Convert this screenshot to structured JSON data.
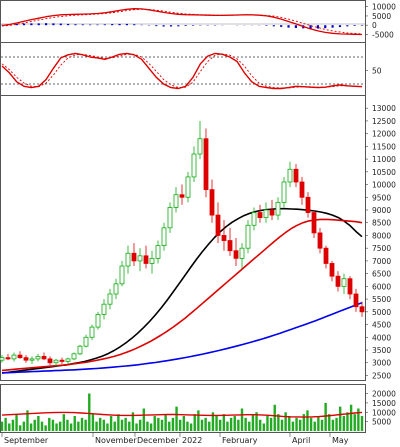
{
  "chart_data": [
    {
      "panel": "macd",
      "type": "line",
      "description_free": true,
      "ylim": [
        -8000,
        12000
      ],
      "y_ticks": [
        10000,
        5000,
        0,
        -5000
      ],
      "y_tick_labels": [
        "10000",
        "5000",
        "0",
        "-5000"
      ],
      "series": [
        {
          "role": "macd",
          "color": "#dd0000",
          "values": [
            -200,
            400,
            1200,
            2100,
            3000,
            3800,
            4600,
            5200,
            5600,
            5800,
            5900,
            6000,
            6100,
            6300,
            6700,
            7300,
            8000,
            8600,
            8900,
            8800,
            8300,
            7600,
            6900,
            6300,
            5900,
            5700,
            5600,
            5500,
            5400,
            5300,
            5300,
            5400,
            5500,
            5600,
            5600,
            5400,
            5000,
            4300,
            3300,
            2000,
            700,
            -700,
            -2000,
            -3100,
            -3900,
            -4400,
            -4700,
            -4800,
            -4900,
            -5000
          ]
        },
        {
          "role": "signal",
          "color": "#dd0000",
          "dashed": true,
          "values": [
            -400,
            -100,
            500,
            1200,
            2000,
            2800,
            3500,
            4200,
            4700,
            5100,
            5400,
            5600,
            5800,
            6000,
            6300,
            6700,
            7300,
            7900,
            8400,
            8600,
            8500,
            8100,
            7600,
            7000,
            6500,
            6100,
            5900,
            5700,
            5600,
            5500,
            5400,
            5400,
            5400,
            5500,
            5500,
            5500,
            5300,
            4900,
            4200,
            3300,
            2200,
            1000,
            -200,
            -1300,
            -2300,
            -3100,
            -3700,
            -4200,
            -4500,
            -4700
          ]
        }
      ],
      "histogram": {
        "color": "#0000cc",
        "values": [
          200,
          500,
          700,
          900,
          1000,
          1000,
          1100,
          1000,
          900,
          700,
          500,
          400,
          300,
          300,
          400,
          600,
          700,
          700,
          500,
          200,
          -200,
          -500,
          -700,
          -700,
          -600,
          -400,
          -300,
          -200,
          -200,
          -200,
          -100,
          0,
          100,
          100,
          100,
          -100,
          -300,
          -600,
          -900,
          -1300,
          -1500,
          -1700,
          -1800,
          -1800,
          -1600,
          -1300,
          -1000,
          -600,
          -400,
          -300
        ]
      }
    },
    {
      "panel": "stochastic",
      "type": "line",
      "ylim": [
        0,
        100
      ],
      "y_ticks": [
        50
      ],
      "y_tick_labels": [
        "50"
      ],
      "reference_lines": [
        80,
        20
      ],
      "series": [
        {
          "role": "k",
          "color": "#dd0000",
          "values": [
            60,
            45,
            25,
            15,
            12,
            15,
            30,
            55,
            78,
            85,
            88,
            85,
            80,
            78,
            75,
            80,
            86,
            88,
            85,
            75,
            55,
            35,
            20,
            12,
            10,
            15,
            35,
            65,
            82,
            88,
            86,
            80,
            70,
            45,
            25,
            15,
            12,
            10,
            10,
            12,
            15,
            14,
            13,
            12,
            13,
            16,
            18,
            16,
            15,
            14
          ]
        },
        {
          "role": "d",
          "color": "#dd0000",
          "dashed": true,
          "values": [
            65,
            52,
            35,
            22,
            15,
            14,
            22,
            40,
            62,
            78,
            85,
            86,
            83,
            80,
            77,
            78,
            82,
            86,
            86,
            80,
            66,
            48,
            30,
            18,
            12,
            13,
            24,
            48,
            70,
            84,
            87,
            84,
            76,
            60,
            38,
            22,
            15,
            12,
            11,
            11,
            13,
            14,
            14,
            13,
            13,
            14,
            16,
            16,
            15,
            15
          ]
        }
      ]
    },
    {
      "panel": "price",
      "type": "candlestick",
      "ylim": [
        2400,
        13400
      ],
      "y_ticks": [
        2500,
        3000,
        3500,
        4000,
        4500,
        5000,
        5500,
        6000,
        6500,
        7000,
        7500,
        8000,
        8500,
        9000,
        9500,
        10000,
        10500,
        11000,
        11500,
        12000,
        12500,
        13000
      ],
      "y_tick_labels": [
        "2500",
        "3000",
        "3500",
        "4000",
        "4500",
        "5000",
        "5500",
        "6000",
        "6500",
        "7000",
        "7500",
        "8000",
        "8500",
        "9000",
        "9500",
        "10000",
        "10500",
        "11000",
        "11500",
        "12000",
        "12500",
        "13000"
      ],
      "x_labels": [
        "September",
        "November",
        "December",
        "2022",
        "February",
        "April",
        "May"
      ],
      "candles": [
        {
          "o": 3100,
          "h": 3300,
          "l": 3000,
          "c": 3200
        },
        {
          "o": 3200,
          "h": 3350,
          "l": 3100,
          "c": 3150
        },
        {
          "o": 3150,
          "h": 3400,
          "l": 3050,
          "c": 3300
        },
        {
          "o": 3300,
          "h": 3450,
          "l": 3150,
          "c": 3200
        },
        {
          "o": 3200,
          "h": 3300,
          "l": 3000,
          "c": 3100
        },
        {
          "o": 3100,
          "h": 3250,
          "l": 2950,
          "c": 3150
        },
        {
          "o": 3150,
          "h": 3350,
          "l": 3050,
          "c": 3250
        },
        {
          "o": 3250,
          "h": 3400,
          "l": 3100,
          "c": 3150
        },
        {
          "o": 3150,
          "h": 3250,
          "l": 2900,
          "c": 3000
        },
        {
          "o": 3000,
          "h": 3150,
          "l": 2850,
          "c": 3100
        },
        {
          "o": 3100,
          "h": 3200,
          "l": 2950,
          "c": 3050
        },
        {
          "o": 3050,
          "h": 3200,
          "l": 2950,
          "c": 3150
        },
        {
          "o": 3150,
          "h": 3400,
          "l": 3100,
          "c": 3350
        },
        {
          "o": 3350,
          "h": 3700,
          "l": 3300,
          "c": 3650
        },
        {
          "o": 3650,
          "h": 4100,
          "l": 3600,
          "c": 4000
        },
        {
          "o": 4000,
          "h": 4500,
          "l": 3900,
          "c": 4400
        },
        {
          "o": 4400,
          "h": 5000,
          "l": 4300,
          "c": 4900
        },
        {
          "o": 4900,
          "h": 5500,
          "l": 4700,
          "c": 5300
        },
        {
          "o": 5300,
          "h": 5900,
          "l": 5100,
          "c": 5700
        },
        {
          "o": 5700,
          "h": 6300,
          "l": 5500,
          "c": 6100
        },
        {
          "o": 6100,
          "h": 7000,
          "l": 6000,
          "c": 6800
        },
        {
          "o": 6800,
          "h": 7600,
          "l": 6500,
          "c": 7300
        },
        {
          "o": 7300,
          "h": 7700,
          "l": 6800,
          "c": 7000
        },
        {
          "o": 7000,
          "h": 7500,
          "l": 6600,
          "c": 7200
        },
        {
          "o": 7200,
          "h": 7600,
          "l": 6700,
          "c": 6900
        },
        {
          "o": 6900,
          "h": 7400,
          "l": 6500,
          "c": 7100
        },
        {
          "o": 7100,
          "h": 7800,
          "l": 6900,
          "c": 7600
        },
        {
          "o": 7600,
          "h": 8500,
          "l": 7400,
          "c": 8300
        },
        {
          "o": 8300,
          "h": 9300,
          "l": 8100,
          "c": 9100
        },
        {
          "o": 9100,
          "h": 9900,
          "l": 8900,
          "c": 9600
        },
        {
          "o": 9600,
          "h": 10000,
          "l": 9200,
          "c": 9500
        },
        {
          "o": 9500,
          "h": 10500,
          "l": 9300,
          "c": 10300
        },
        {
          "o": 10300,
          "h": 11500,
          "l": 10100,
          "c": 11200
        },
        {
          "o": 11200,
          "h": 12500,
          "l": 11000,
          "c": 11800
        },
        {
          "o": 11800,
          "h": 12200,
          "l": 9500,
          "c": 9800
        },
        {
          "o": 9800,
          "h": 10200,
          "l": 8500,
          "c": 8800
        },
        {
          "o": 8800,
          "h": 9300,
          "l": 7700,
          "c": 8000
        },
        {
          "o": 8000,
          "h": 8600,
          "l": 7400,
          "c": 7800
        },
        {
          "o": 7800,
          "h": 8300,
          "l": 7200,
          "c": 7400
        },
        {
          "o": 7400,
          "h": 7900,
          "l": 6800,
          "c": 7100
        },
        {
          "o": 7100,
          "h": 7700,
          "l": 6700,
          "c": 7500
        },
        {
          "o": 7500,
          "h": 8600,
          "l": 7300,
          "c": 8400
        },
        {
          "o": 8400,
          "h": 9100,
          "l": 8200,
          "c": 8900
        },
        {
          "o": 8900,
          "h": 9200,
          "l": 8500,
          "c": 8700
        },
        {
          "o": 8700,
          "h": 9300,
          "l": 8500,
          "c": 9000
        },
        {
          "o": 9000,
          "h": 9400,
          "l": 8600,
          "c": 8800
        },
        {
          "o": 8800,
          "h": 9500,
          "l": 8600,
          "c": 9300
        },
        {
          "o": 9300,
          "h": 10300,
          "l": 9100,
          "c": 10100
        },
        {
          "o": 10100,
          "h": 10900,
          "l": 9900,
          "c": 10600
        },
        {
          "o": 10600,
          "h": 10800,
          "l": 9900,
          "c": 10100
        },
        {
          "o": 10100,
          "h": 10300,
          "l": 9200,
          "c": 9500
        },
        {
          "o": 9500,
          "h": 9700,
          "l": 8700,
          "c": 8900
        },
        {
          "o": 8900,
          "h": 9000,
          "l": 7900,
          "c": 8100
        },
        {
          "o": 8100,
          "h": 8300,
          "l": 7300,
          "c": 7500
        },
        {
          "o": 7500,
          "h": 7600,
          "l": 6700,
          "c": 6900
        },
        {
          "o": 6900,
          "h": 7000,
          "l": 6200,
          "c": 6400
        },
        {
          "o": 6400,
          "h": 6600,
          "l": 5800,
          "c": 6000
        },
        {
          "o": 6000,
          "h": 6500,
          "l": 5700,
          "c": 6300
        },
        {
          "o": 6300,
          "h": 6400,
          "l": 5500,
          "c": 5700
        },
        {
          "o": 5700,
          "h": 5900,
          "l": 5000,
          "c": 5200
        },
        {
          "o": 5200,
          "h": 5400,
          "l": 4800,
          "c": 5000
        }
      ],
      "series": [
        {
          "role": "ma_short",
          "color": "#000000",
          "values": [
            2600,
            2620,
            2650,
            2680,
            2710,
            2740,
            2770,
            2800,
            2830,
            2860,
            2890,
            2920,
            2960,
            3000,
            3050,
            3110,
            3180,
            3260,
            3360,
            3480,
            3620,
            3780,
            3960,
            4160,
            4380,
            4620,
            4880,
            5160,
            5460,
            5780,
            6100,
            6430,
            6760,
            7080,
            7380,
            7660,
            7920,
            8150,
            8350,
            8520,
            8660,
            8780,
            8870,
            8940,
            8990,
            9020,
            9040,
            9050,
            9050,
            9040,
            9030,
            9010,
            8990,
            8960,
            8920,
            8870,
            8800,
            8700,
            8560,
            8380,
            8150,
            7950
          ]
        },
        {
          "role": "ma_mid",
          "color": "#dd0000",
          "values": [
            2700,
            2720,
            2740,
            2760,
            2780,
            2800,
            2820,
            2840,
            2860,
            2880,
            2900,
            2920,
            2950,
            2980,
            3010,
            3050,
            3090,
            3140,
            3190,
            3250,
            3320,
            3400,
            3490,
            3590,
            3700,
            3820,
            3950,
            4090,
            4240,
            4400,
            4570,
            4750,
            4940,
            5140,
            5340,
            5540,
            5740,
            5940,
            6140,
            6340,
            6540,
            6740,
            6940,
            7140,
            7340,
            7540,
            7740,
            7930,
            8110,
            8270,
            8400,
            8500,
            8570,
            8610,
            8630,
            8630,
            8620,
            8600,
            8580,
            8560,
            8540,
            8500
          ]
        },
        {
          "role": "ma_long",
          "color": "#0000ee",
          "values": [
            2600,
            2610,
            2620,
            2630,
            2640,
            2650,
            2660,
            2670,
            2680,
            2690,
            2700,
            2710,
            2720,
            2730,
            2745,
            2760,
            2775,
            2790,
            2810,
            2830,
            2850,
            2870,
            2895,
            2920,
            2950,
            2980,
            3010,
            3045,
            3080,
            3120,
            3160,
            3200,
            3245,
            3290,
            3340,
            3390,
            3440,
            3495,
            3550,
            3610,
            3670,
            3730,
            3795,
            3860,
            3930,
            4000,
            4075,
            4150,
            4230,
            4310,
            4390,
            4470,
            4555,
            4640,
            4730,
            4820,
            4910,
            5000,
            5090,
            5180,
            5270,
            5360
          ]
        }
      ]
    },
    {
      "panel": "volume",
      "type": "bar",
      "ylim": [
        0,
        24000
      ],
      "y_ticks": [
        20000,
        15000,
        10000,
        5000
      ],
      "y_tick_labels": [
        "20000",
        "15000",
        "10000",
        "5000"
      ],
      "bar_color": "#22aa22",
      "values": [
        5000,
        7000,
        4000,
        6000,
        9000,
        3000,
        5000,
        11000,
        4000,
        6000,
        8000,
        5000,
        3000,
        7000,
        6000,
        4000,
        5000,
        9000,
        6000,
        4000,
        8000,
        5000,
        7000,
        6000,
        20000,
        9000,
        5000,
        7000,
        6000,
        4000,
        8000,
        5000,
        9000,
        6000,
        7000,
        5000,
        10000,
        4000,
        6000,
        12000,
        5000,
        4000,
        8000,
        7000,
        6000,
        9000,
        5000,
        7000,
        13000,
        6000,
        8000,
        5000,
        4000,
        9000,
        11000,
        6000,
        7000,
        5000,
        10000,
        8000,
        6000,
        9000,
        5000,
        7000,
        8000,
        6000,
        12000,
        7000,
        5000,
        9000,
        10000,
        6000,
        4000,
        8000,
        7000,
        14000,
        9000,
        6000,
        10000,
        8000,
        5000,
        7000,
        6000,
        9000,
        11000,
        7000,
        5000,
        8000,
        6000,
        15000,
        9000,
        6000,
        7000,
        13000,
        8000,
        10000,
        14000,
        9000,
        12000,
        8000
      ],
      "ma": {
        "color": "#dd0000",
        "values": [
          8500,
          8700,
          8900,
          9100,
          9300,
          9500,
          9700,
          9800,
          9900,
          9900,
          9800,
          9600,
          9400,
          9100,
          8800,
          8600,
          8400,
          8300,
          8300,
          8400,
          8500,
          8600,
          8700,
          8800,
          8800,
          8700,
          8600,
          8500,
          8400,
          8300,
          8300,
          8400,
          8500,
          8600,
          8700,
          8700,
          8600,
          8400,
          8100,
          7800,
          7600,
          7500,
          7400,
          7500,
          7700,
          8000,
          8400,
          8800,
          9200,
          9600,
          9900
        ]
      }
    }
  ]
}
